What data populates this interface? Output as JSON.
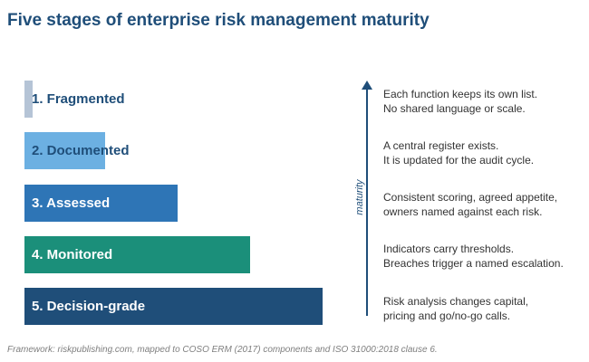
{
  "title": "Five stages of enterprise risk management maturity",
  "stages": [
    {
      "label": "1. Fragmented",
      "level": 1,
      "color": "#b5c4d6",
      "text_color": "#1f4e79",
      "description": [
        "Each function keeps its own list.",
        "No shared language or scale."
      ]
    },
    {
      "label": "2. Documented",
      "level": 2,
      "color": "#6cb0e2",
      "text_color": "#1f4e79",
      "description": [
        "A central register exists.",
        "It is updated for the audit cycle."
      ]
    },
    {
      "label": "3. Assessed",
      "level": 3,
      "color": "#2e75b6",
      "text_color": "#ffffff",
      "description": [
        "Consistent scoring, agreed appetite,",
        "owners named against each risk."
      ]
    },
    {
      "label": "4. Monitored",
      "level": 4,
      "color": "#1b8f7a",
      "text_color": "#ffffff",
      "description": [
        "Indicators carry thresholds.",
        "Breaches trigger a named escalation."
      ]
    },
    {
      "label": "5. Decision-grade",
      "level": 5,
      "color": "#1f4e79",
      "text_color": "#ffffff",
      "description": [
        "Risk analysis changes capital,",
        "pricing and go/no-go calls."
      ]
    }
  ],
  "axis": {
    "label": "maturity",
    "color": "#1f4e79"
  },
  "footer": "Framework: riskpublishing.com, mapped to COSO ERM (2017) components and ISO 31000:2018 clause 6."
}
